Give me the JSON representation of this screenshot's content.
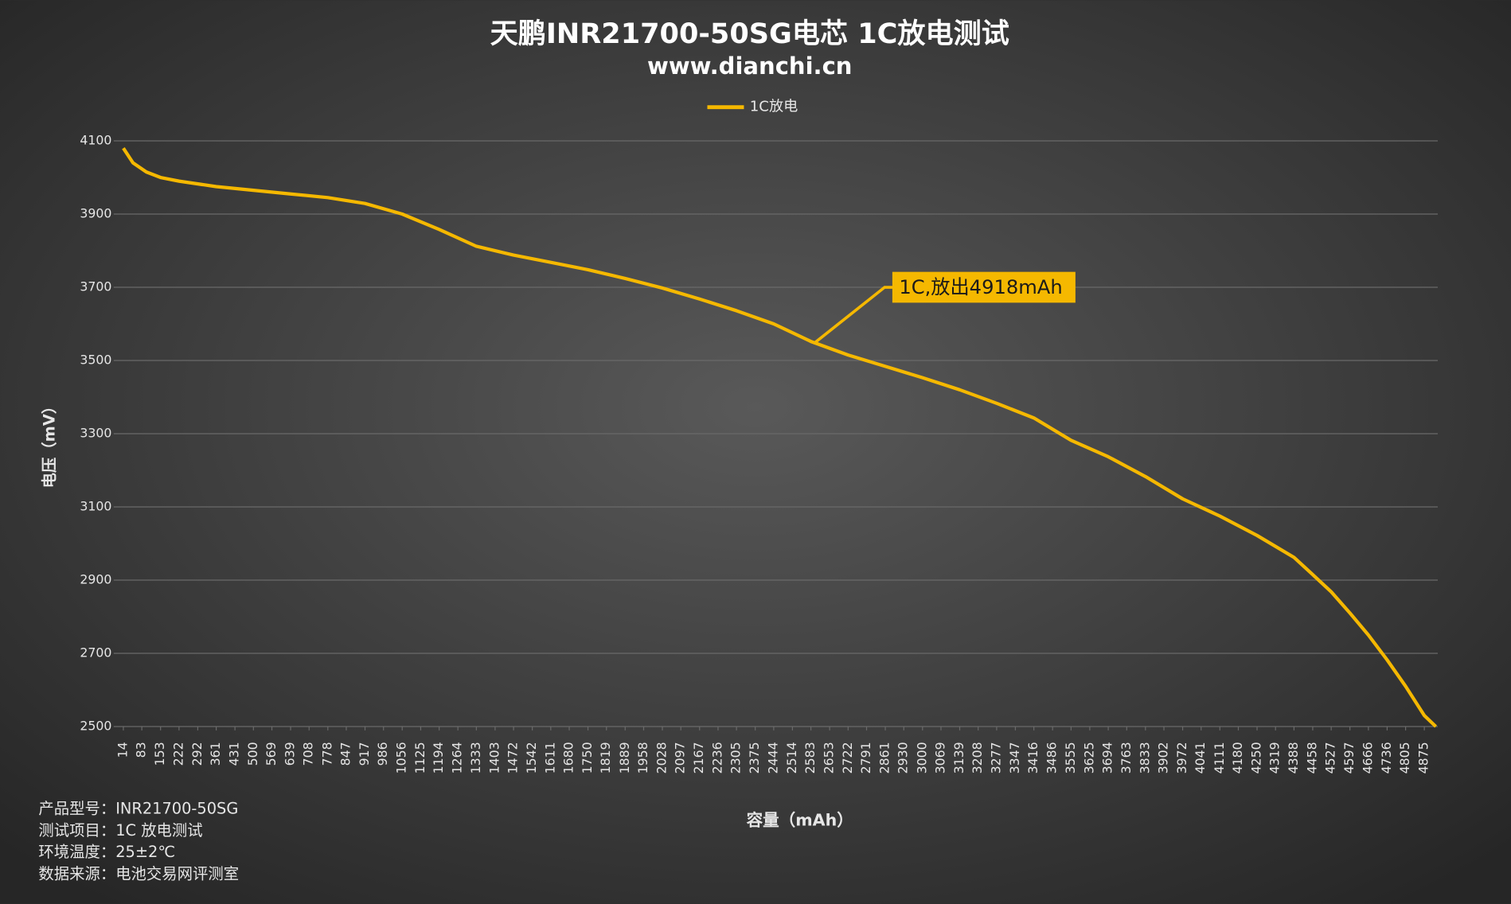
{
  "chart_data": {
    "type": "line",
    "title": "天鹏INR21700-50SG电芯 1C放电测试",
    "subtitle": "www.dianchi.cn",
    "x_label": "容量（mAh）",
    "y_label": "电压（mV）",
    "annotation": "1C,放出4918mAh",
    "notes": [
      "产品型号：INR21700-50SG",
      "测试项目：1C 放电测试",
      "环境温度：25±2℃",
      "数据来源：电池交易网评测室"
    ],
    "legend": "top",
    "grid": true,
    "x": [
      14,
      50,
      100,
      153,
      222,
      361,
      500,
      639,
      778,
      917,
      1056,
      1194,
      1333,
      1472,
      1611,
      1750,
      1889,
      2028,
      2167,
      2305,
      2444,
      2583,
      2722,
      2861,
      3000,
      3139,
      3277,
      3416,
      3555,
      3694,
      3833,
      3972,
      4111,
      4250,
      4388,
      4458,
      4527,
      4597,
      4666,
      4736,
      4805,
      4875,
      4918
    ],
    "series": [
      {
        "name": "1C放电",
        "color": "#f5b800",
        "values": [
          4080,
          4040,
          4015,
          4000,
          3990,
          3975,
          3965,
          3955,
          3945,
          3929,
          3900,
          3858,
          3812,
          3788,
          3768,
          3748,
          3724,
          3698,
          3668,
          3636,
          3600,
          3552,
          3515,
          3484,
          3453,
          3420,
          3383,
          3343,
          3282,
          3237,
          3183,
          3122,
          3075,
          3022,
          2962,
          2915,
          2868,
          2810,
          2750,
          2682,
          2610,
          2530,
          2500
        ]
      }
    ],
    "xlim": [
      14,
      4918
    ],
    "xticks": [
      14,
      83,
      153,
      222,
      292,
      361,
      431,
      500,
      569,
      639,
      708,
      778,
      847,
      917,
      986,
      1056,
      1125,
      1194,
      1264,
      1333,
      1403,
      1472,
      1542,
      1611,
      1680,
      1750,
      1819,
      1889,
      1958,
      2028,
      2097,
      2167,
      2236,
      2305,
      2375,
      2444,
      2514,
      2583,
      2653,
      2722,
      2791,
      2861,
      2930,
      3000,
      3069,
      3139,
      3208,
      3277,
      3347,
      3416,
      3486,
      3555,
      3625,
      3694,
      3763,
      3833,
      3902,
      3972,
      4041,
      4111,
      4180,
      4250,
      4319,
      4388,
      4458,
      4527,
      4597,
      4666,
      4736,
      4805,
      4875
    ],
    "ylim": [
      2500,
      4100
    ],
    "yticks": [
      2500,
      2700,
      2900,
      3100,
      3300,
      3500,
      3700,
      3900,
      4100
    ]
  }
}
